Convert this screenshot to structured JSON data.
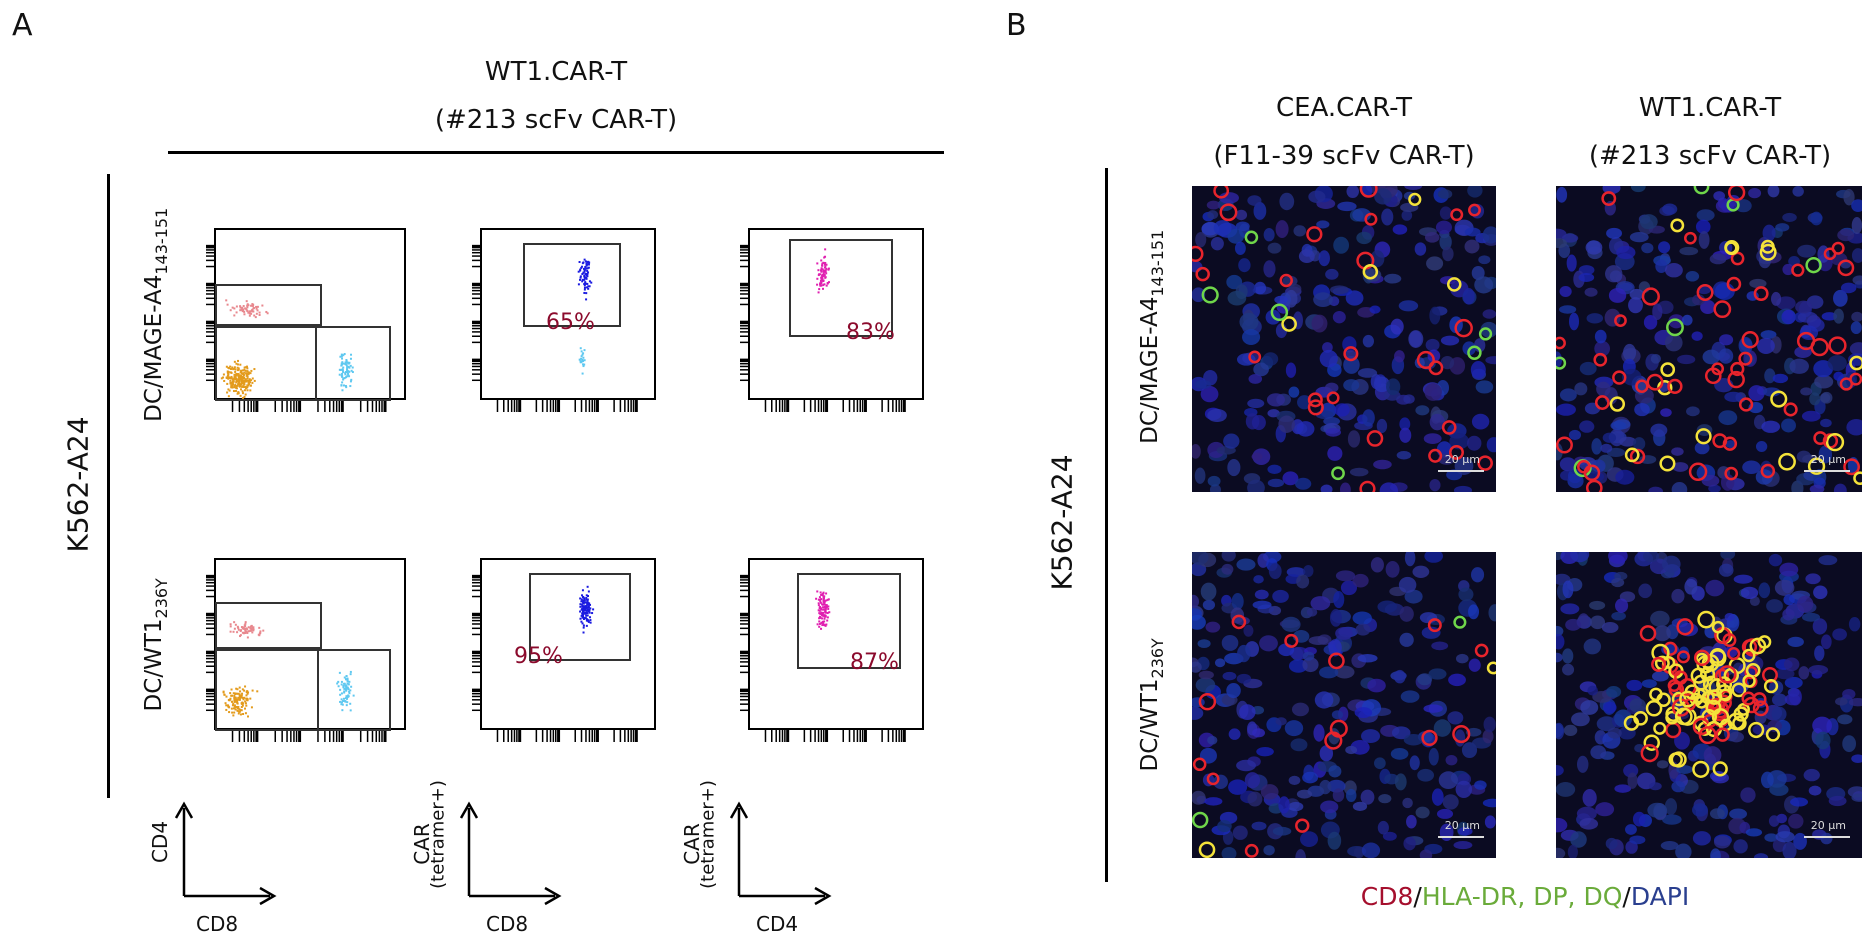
{
  "panel_a": {
    "letter": "A",
    "title_line1": "WT1.CAR-T",
    "title_line2": "(#213 scFv CAR-T)",
    "group_label": "K562-A24",
    "rows": [
      {
        "label_main": "DC/MAGE-A4",
        "label_sub": "143-151",
        "cd8_gate_pct": "65%",
        "cd4_gate_pct": "83%"
      },
      {
        "label_main": "DC/WT1",
        "label_sub": "236Y",
        "cd8_gate_pct": "95%",
        "cd4_gate_pct": "87%"
      }
    ],
    "axis_keys": [
      {
        "y": "CD4",
        "y2": "",
        "x": "CD8"
      },
      {
        "y": "CAR",
        "y2": "(tetramer+)",
        "x": "CD8"
      },
      {
        "y": "CAR",
        "y2": "(tetramer+)",
        "x": "CD4"
      }
    ],
    "colors": {
      "cd4_pop": "#e8888e",
      "dn_pop": "#e39b1c",
      "cd8_pop": "#5fc8f0",
      "cd8_car": "#1a1ae0",
      "cd4_car": "#e020b0",
      "pct_text": "#8b0a2c"
    }
  },
  "panel_b": {
    "letter": "B",
    "columns": [
      {
        "line1": "CEA.CAR-T",
        "line2": "(F11-39 scFv CAR-T)"
      },
      {
        "line1": "WT1.CAR-T",
        "line2": "(#213 scFv CAR-T)"
      }
    ],
    "group_label": "K562-A24",
    "rows": [
      {
        "label_main": "DC/MAGE-A4",
        "label_sub": "143-151"
      },
      {
        "label_main": "DC/WT1",
        "label_sub": "236Y"
      }
    ],
    "scale_bar": "20 μm",
    "caption": {
      "cd8": "CD8",
      "sep1": "/",
      "hla": "HLA-DR, DP, DQ",
      "sep2": "/",
      "dapi": "DAPI"
    },
    "colors": {
      "cd8": "#a50f2d",
      "hla": "#6aab3a",
      "dapi": "#2a3f8f"
    }
  }
}
